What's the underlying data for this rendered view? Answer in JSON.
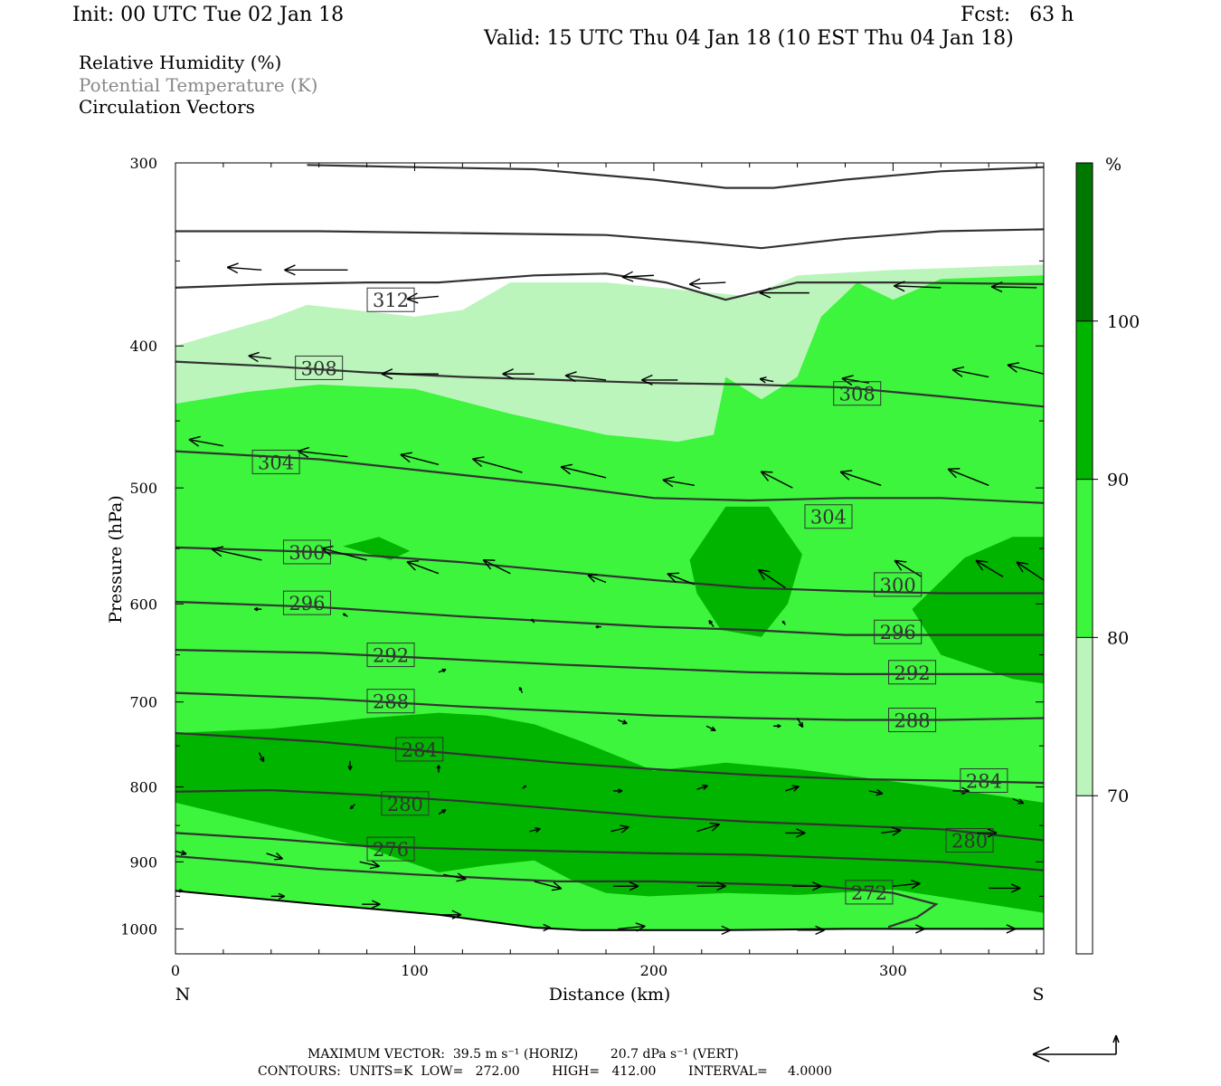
{
  "header": {
    "init": "Init: 00 UTC Tue 02 Jan 18",
    "fcst": "Fcst:   63 h",
    "valid": "Valid: 15 UTC Thu 04 Jan 18 (10 EST Thu 04 Jan 18)"
  },
  "legend": {
    "line1": "Relative Humidity (%)",
    "line2": "Potential Temperature (K)",
    "line3": "Circulation Vectors"
  },
  "footer": {
    "max_vector": "MAXIMUM VECTOR:  39.5 m s⁻¹ (HORIZ)        20.7 dPa s⁻¹ (VERT)",
    "contours": "CONTOURS:  UNITS=K  LOW=   272.00        HIGH=   412.00        INTERVAL=     4.0000"
  },
  "colors": {
    "rh_70_80": "#bbf5bb",
    "rh_80_90": "#3cf53c",
    "rh_90_100": "#00b400",
    "rh_100": "#007800",
    "theta": "#333333",
    "vectors": "#000000"
  },
  "chart_data": {
    "type": "cross-section",
    "title": "",
    "xlabel": "Distance (km)",
    "ylabel": "Pressure (hPa)",
    "x_ticks": [
      0,
      100,
      200,
      300
    ],
    "y_ticks": [
      300,
      400,
      500,
      600,
      700,
      800,
      900,
      1000
    ],
    "xlim": [
      0,
      363
    ],
    "ylim": [
      1040,
      300
    ],
    "y_scale": "log",
    "x_end_labels": {
      "left": "N",
      "right": "S"
    },
    "colorbar": {
      "unit": "%",
      "levels": [
        70,
        80,
        90,
        100
      ]
    },
    "rh_layers": [
      {
        "range": "70-80",
        "upper": [
          [
            0,
            400
          ],
          [
            40,
            383
          ],
          [
            55,
            375
          ],
          [
            100,
            382
          ],
          [
            120,
            378
          ],
          [
            140,
            362
          ],
          [
            180,
            362
          ],
          [
            240,
            370
          ],
          [
            260,
            358
          ],
          [
            300,
            355
          ],
          [
            363,
            352
          ]
        ],
        "lower": [
          [
            0,
            1040
          ],
          [
            363,
            1040
          ]
        ]
      },
      {
        "range": "80-90",
        "upper": [
          [
            0,
            438
          ],
          [
            30,
            430
          ],
          [
            60,
            425
          ],
          [
            100,
            428
          ],
          [
            140,
            445
          ],
          [
            180,
            460
          ],
          [
            210,
            465
          ],
          [
            225,
            460
          ],
          [
            230,
            420
          ],
          [
            245,
            435
          ],
          [
            260,
            420
          ],
          [
            270,
            382
          ],
          [
            285,
            362
          ],
          [
            300,
            372
          ],
          [
            320,
            360
          ],
          [
            363,
            358
          ]
        ],
        "lower": [
          [
            0,
            1040
          ],
          [
            363,
            1040
          ]
        ]
      },
      {
        "range": "90-100 a",
        "upper": [
          [
            70,
            548
          ],
          [
            85,
            540
          ],
          [
            98,
            552
          ],
          [
            90,
            560
          ]
        ],
        "closed": true
      },
      {
        "range": "90-100 b",
        "upper": [
          [
            215,
            560
          ],
          [
            230,
            515
          ],
          [
            248,
            515
          ],
          [
            262,
            555
          ],
          [
            256,
            600
          ],
          [
            245,
            632
          ],
          [
            228,
            625
          ],
          [
            218,
            590
          ]
        ],
        "closed": true
      },
      {
        "range": "90-100 c",
        "upper": [
          [
            308,
            605
          ],
          [
            330,
            558
          ],
          [
            350,
            540
          ],
          [
            363,
            540
          ],
          [
            363,
            680
          ],
          [
            350,
            675
          ],
          [
            320,
            650
          ]
        ],
        "closed": true
      },
      {
        "range": "90-100 d",
        "upper": [
          [
            0,
            735
          ],
          [
            40,
            730
          ],
          [
            80,
            718
          ],
          [
            110,
            712
          ],
          [
            130,
            715
          ],
          [
            150,
            725
          ],
          [
            170,
            745
          ],
          [
            200,
            780
          ],
          [
            230,
            770
          ],
          [
            260,
            778
          ],
          [
            300,
            793
          ],
          [
            330,
            805
          ],
          [
            363,
            820
          ]
        ],
        "lower": [
          [
            0,
            820
          ],
          [
            40,
            850
          ],
          [
            80,
            880
          ],
          [
            110,
            915
          ],
          [
            130,
            905
          ],
          [
            150,
            898
          ],
          [
            165,
            925
          ],
          [
            180,
            945
          ],
          [
            198,
            950
          ],
          [
            230,
            945
          ],
          [
            260,
            948
          ],
          [
            300,
            940
          ],
          [
            363,
            975
          ]
        ]
      }
    ],
    "theta_contours": [
      {
        "theta": 312,
        "points": [
          [
            0,
            365
          ],
          [
            40,
            363
          ],
          [
            80,
            362
          ],
          [
            110,
            362
          ],
          [
            150,
            358
          ],
          [
            180,
            357
          ],
          [
            205,
            362
          ],
          [
            230,
            372
          ],
          [
            260,
            362
          ],
          [
            300,
            362
          ],
          [
            363,
            363
          ]
        ]
      },
      {
        "theta": 308,
        "points": [
          [
            0,
            410
          ],
          [
            40,
            413
          ],
          [
            80,
            417
          ],
          [
            120,
            420
          ],
          [
            160,
            422
          ],
          [
            200,
            424
          ],
          [
            240,
            425
          ],
          [
            280,
            427
          ],
          [
            320,
            433
          ],
          [
            363,
            440
          ]
        ]
      },
      {
        "theta": 304,
        "points": [
          [
            0,
            472
          ],
          [
            60,
            478
          ],
          [
            120,
            490
          ],
          [
            160,
            498
          ],
          [
            200,
            508
          ],
          [
            240,
            510
          ],
          [
            280,
            508
          ],
          [
            320,
            508
          ],
          [
            363,
            512
          ]
        ]
      },
      {
        "theta": 300,
        "points": [
          [
            0,
            549
          ],
          [
            60,
            553
          ],
          [
            120,
            562
          ],
          [
            160,
            570
          ],
          [
            200,
            578
          ],
          [
            240,
            585
          ],
          [
            280,
            588
          ],
          [
            320,
            590
          ],
          [
            363,
            590
          ]
        ]
      },
      {
        "theta": 296,
        "points": [
          [
            0,
            598
          ],
          [
            60,
            603
          ],
          [
            120,
            612
          ],
          [
            160,
            617
          ],
          [
            200,
            622
          ],
          [
            240,
            625
          ],
          [
            280,
            630
          ],
          [
            320,
            630
          ],
          [
            363,
            630
          ]
        ]
      },
      {
        "theta": 292,
        "points": [
          [
            0,
            645
          ],
          [
            60,
            648
          ],
          [
            120,
            655
          ],
          [
            160,
            660
          ],
          [
            200,
            664
          ],
          [
            240,
            668
          ],
          [
            280,
            670
          ],
          [
            320,
            670
          ],
          [
            363,
            670
          ]
        ]
      },
      {
        "theta": 288,
        "points": [
          [
            0,
            690
          ],
          [
            60,
            696
          ],
          [
            120,
            705
          ],
          [
            160,
            710
          ],
          [
            200,
            715
          ],
          [
            240,
            718
          ],
          [
            280,
            720
          ],
          [
            320,
            720
          ],
          [
            363,
            718
          ]
        ]
      },
      {
        "theta": 284,
        "points": [
          [
            0,
            735
          ],
          [
            60,
            745
          ],
          [
            120,
            760
          ],
          [
            160,
            770
          ],
          [
            200,
            778
          ],
          [
            240,
            785
          ],
          [
            280,
            790
          ],
          [
            320,
            792
          ],
          [
            363,
            795
          ]
        ]
      },
      {
        "theta": 280,
        "points": [
          [
            0,
            806
          ],
          [
            40,
            804
          ],
          [
            80,
            810
          ],
          [
            120,
            818
          ],
          [
            160,
            828
          ],
          [
            200,
            838
          ],
          [
            240,
            845
          ],
          [
            280,
            850
          ],
          [
            320,
            855
          ],
          [
            363,
            870
          ]
        ]
      },
      {
        "theta": 276,
        "points": [
          [
            0,
            860
          ],
          [
            40,
            868
          ],
          [
            80,
            878
          ],
          [
            120,
            882
          ],
          [
            160,
            885
          ],
          [
            200,
            888
          ],
          [
            240,
            890
          ],
          [
            280,
            895
          ],
          [
            320,
            900
          ],
          [
            363,
            912
          ]
        ]
      },
      {
        "theta": 272,
        "points": [
          [
            0,
            892
          ],
          [
            30,
            900
          ],
          [
            60,
            910
          ],
          [
            100,
            918
          ],
          [
            140,
            925
          ],
          [
            160,
            928
          ],
          [
            200,
            928
          ],
          [
            240,
            932
          ],
          [
            270,
            935
          ],
          [
            300,
            945
          ],
          [
            318,
            962
          ],
          [
            310,
            982
          ],
          [
            298,
            997
          ]
        ]
      }
    ],
    "theta_labels": [
      {
        "theta": 312,
        "x": 90,
        "p": 372
      },
      {
        "theta": 308,
        "x": 60,
        "p": 414
      },
      {
        "theta": 308,
        "x": 285,
        "p": 431
      },
      {
        "theta": 304,
        "x": 42,
        "p": 480
      },
      {
        "theta": 304,
        "x": 273,
        "p": 523
      },
      {
        "theta": 300,
        "x": 55,
        "p": 553
      },
      {
        "theta": 300,
        "x": 302,
        "p": 582
      },
      {
        "theta": 296,
        "x": 55,
        "p": 599
      },
      {
        "theta": 296,
        "x": 302,
        "p": 627
      },
      {
        "theta": 292,
        "x": 90,
        "p": 650
      },
      {
        "theta": 292,
        "x": 308,
        "p": 668
      },
      {
        "theta": 288,
        "x": 90,
        "p": 699
      },
      {
        "theta": 288,
        "x": 308,
        "p": 720
      },
      {
        "theta": 284,
        "x": 102,
        "p": 754
      },
      {
        "theta": 284,
        "x": 338,
        "p": 792
      },
      {
        "theta": 280,
        "x": 96,
        "p": 821
      },
      {
        "theta": 280,
        "x": 332,
        "p": 870
      },
      {
        "theta": 276,
        "x": 90,
        "p": 882
      },
      {
        "theta": 272,
        "x": 290,
        "p": 944
      }
    ],
    "surface_pressure": [
      [
        0,
        942
      ],
      [
        60,
        962
      ],
      [
        110,
        978
      ],
      [
        150,
        998
      ],
      [
        170,
        1002
      ],
      [
        230,
        1002
      ],
      [
        280,
        1000
      ],
      [
        363,
        1000
      ]
    ],
    "vectors": [
      {
        "x": 72,
        "p": 355,
        "u": -70,
        "v": 0
      },
      {
        "x": 36,
        "p": 355,
        "u": -38,
        "v": -3
      },
      {
        "x": 110,
        "p": 370,
        "u": -35,
        "v": 3
      },
      {
        "x": 200,
        "p": 358,
        "u": -35,
        "v": 2
      },
      {
        "x": 230,
        "p": 362,
        "u": -40,
        "v": 2
      },
      {
        "x": 265,
        "p": 368,
        "u": -55,
        "v": 0
      },
      {
        "x": 320,
        "p": 365,
        "u": -52,
        "v": -2
      },
      {
        "x": 360,
        "p": 365,
        "u": -50,
        "v": -1
      },
      {
        "x": 40,
        "p": 408,
        "u": -25,
        "v": -3
      },
      {
        "x": 110,
        "p": 418,
        "u": -63,
        "v": 0
      },
      {
        "x": 150,
        "p": 418,
        "u": -35,
        "v": 0
      },
      {
        "x": 180,
        "p": 422,
        "u": -45,
        "v": -5
      },
      {
        "x": 210,
        "p": 422,
        "u": -40,
        "v": 0
      },
      {
        "x": 250,
        "p": 423,
        "u": -15,
        "v": -3
      },
      {
        "x": 290,
        "p": 424,
        "u": -30,
        "v": -5
      },
      {
        "x": 340,
        "p": 420,
        "u": -40,
        "v": -8
      },
      {
        "x": 363,
        "p": 418,
        "u": -40,
        "v": -10
      },
      {
        "x": 20,
        "p": 468,
        "u": -38,
        "v": -7
      },
      {
        "x": 72,
        "p": 476,
        "u": -55,
        "v": -6
      },
      {
        "x": 110,
        "p": 482,
        "u": -42,
        "v": -11
      },
      {
        "x": 145,
        "p": 488,
        "u": -55,
        "v": -15
      },
      {
        "x": 180,
        "p": 492,
        "u": -50,
        "v": -12
      },
      {
        "x": 217,
        "p": 498,
        "u": -35,
        "v": -6
      },
      {
        "x": 258,
        "p": 500,
        "u": -35,
        "v": -18
      },
      {
        "x": 295,
        "p": 498,
        "u": -45,
        "v": -15
      },
      {
        "x": 340,
        "p": 498,
        "u": -45,
        "v": -18
      },
      {
        "x": 36,
        "p": 560,
        "u": -55,
        "v": -12
      },
      {
        "x": 80,
        "p": 560,
        "u": -50,
        "v": -13
      },
      {
        "x": 110,
        "p": 572,
        "u": -35,
        "v": -13
      },
      {
        "x": 140,
        "p": 572,
        "u": -30,
        "v": -15
      },
      {
        "x": 180,
        "p": 580,
        "u": -20,
        "v": -8
      },
      {
        "x": 217,
        "p": 582,
        "u": -30,
        "v": -12
      },
      {
        "x": 255,
        "p": 585,
        "u": -30,
        "v": -20
      },
      {
        "x": 312,
        "p": 575,
        "u": -30,
        "v": -18
      },
      {
        "x": 346,
        "p": 575,
        "u": -30,
        "v": -18
      },
      {
        "x": 363,
        "p": 578,
        "u": -30,
        "v": -20
      },
      {
        "x": 36,
        "p": 605,
        "u": -8,
        "v": 0
      },
      {
        "x": 72,
        "p": 612,
        "u": -5,
        "v": -3
      }
    ]
  }
}
